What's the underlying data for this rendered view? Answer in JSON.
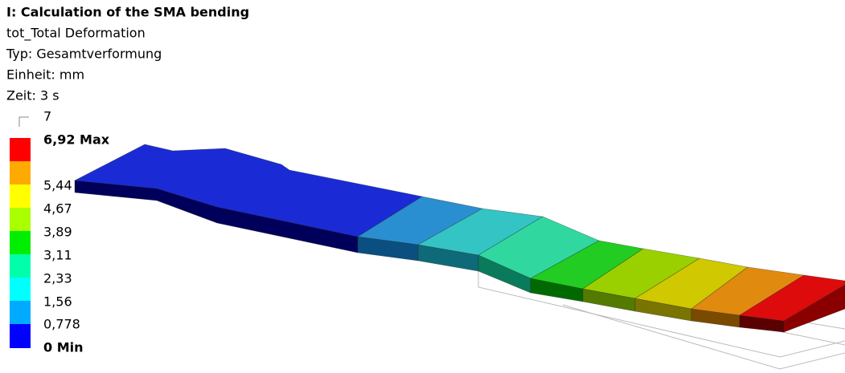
{
  "header": {
    "title": "I: Calculation of the SMA bending",
    "lines": [
      "tot_Total Deformation",
      "Typ: Gesamtverformung",
      "Einheit: mm",
      "Zeit: 3 s"
    ]
  },
  "legend": {
    "top": "7",
    "max": "6,92 Max",
    "levels": [
      "5,44",
      "4,67",
      "3,89",
      "3,11",
      "2,33",
      "1,56",
      "0,778"
    ],
    "min": "0 Min"
  }
}
